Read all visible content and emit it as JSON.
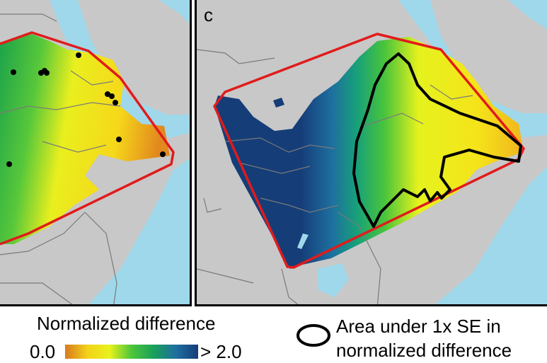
{
  "panel_right": {
    "label": "c"
  },
  "legend": {
    "title": "Normalized difference",
    "min_label": "0.0",
    "max_label": "> 2.0",
    "colors": [
      "#d97a1f",
      "#f2d21a",
      "#e8f21c",
      "#4cc63a",
      "#1aa05a",
      "#1e6fa0",
      "#153d78"
    ]
  },
  "se_legend": {
    "line1": "Area under 1x SE in",
    "line2": "normalized difference"
  },
  "map_colors": {
    "land": "#c8c8c8",
    "water": "#9fd8ea",
    "border": "#7a7a7a",
    "hull": "#e11b1b",
    "contour": "#000000"
  }
}
